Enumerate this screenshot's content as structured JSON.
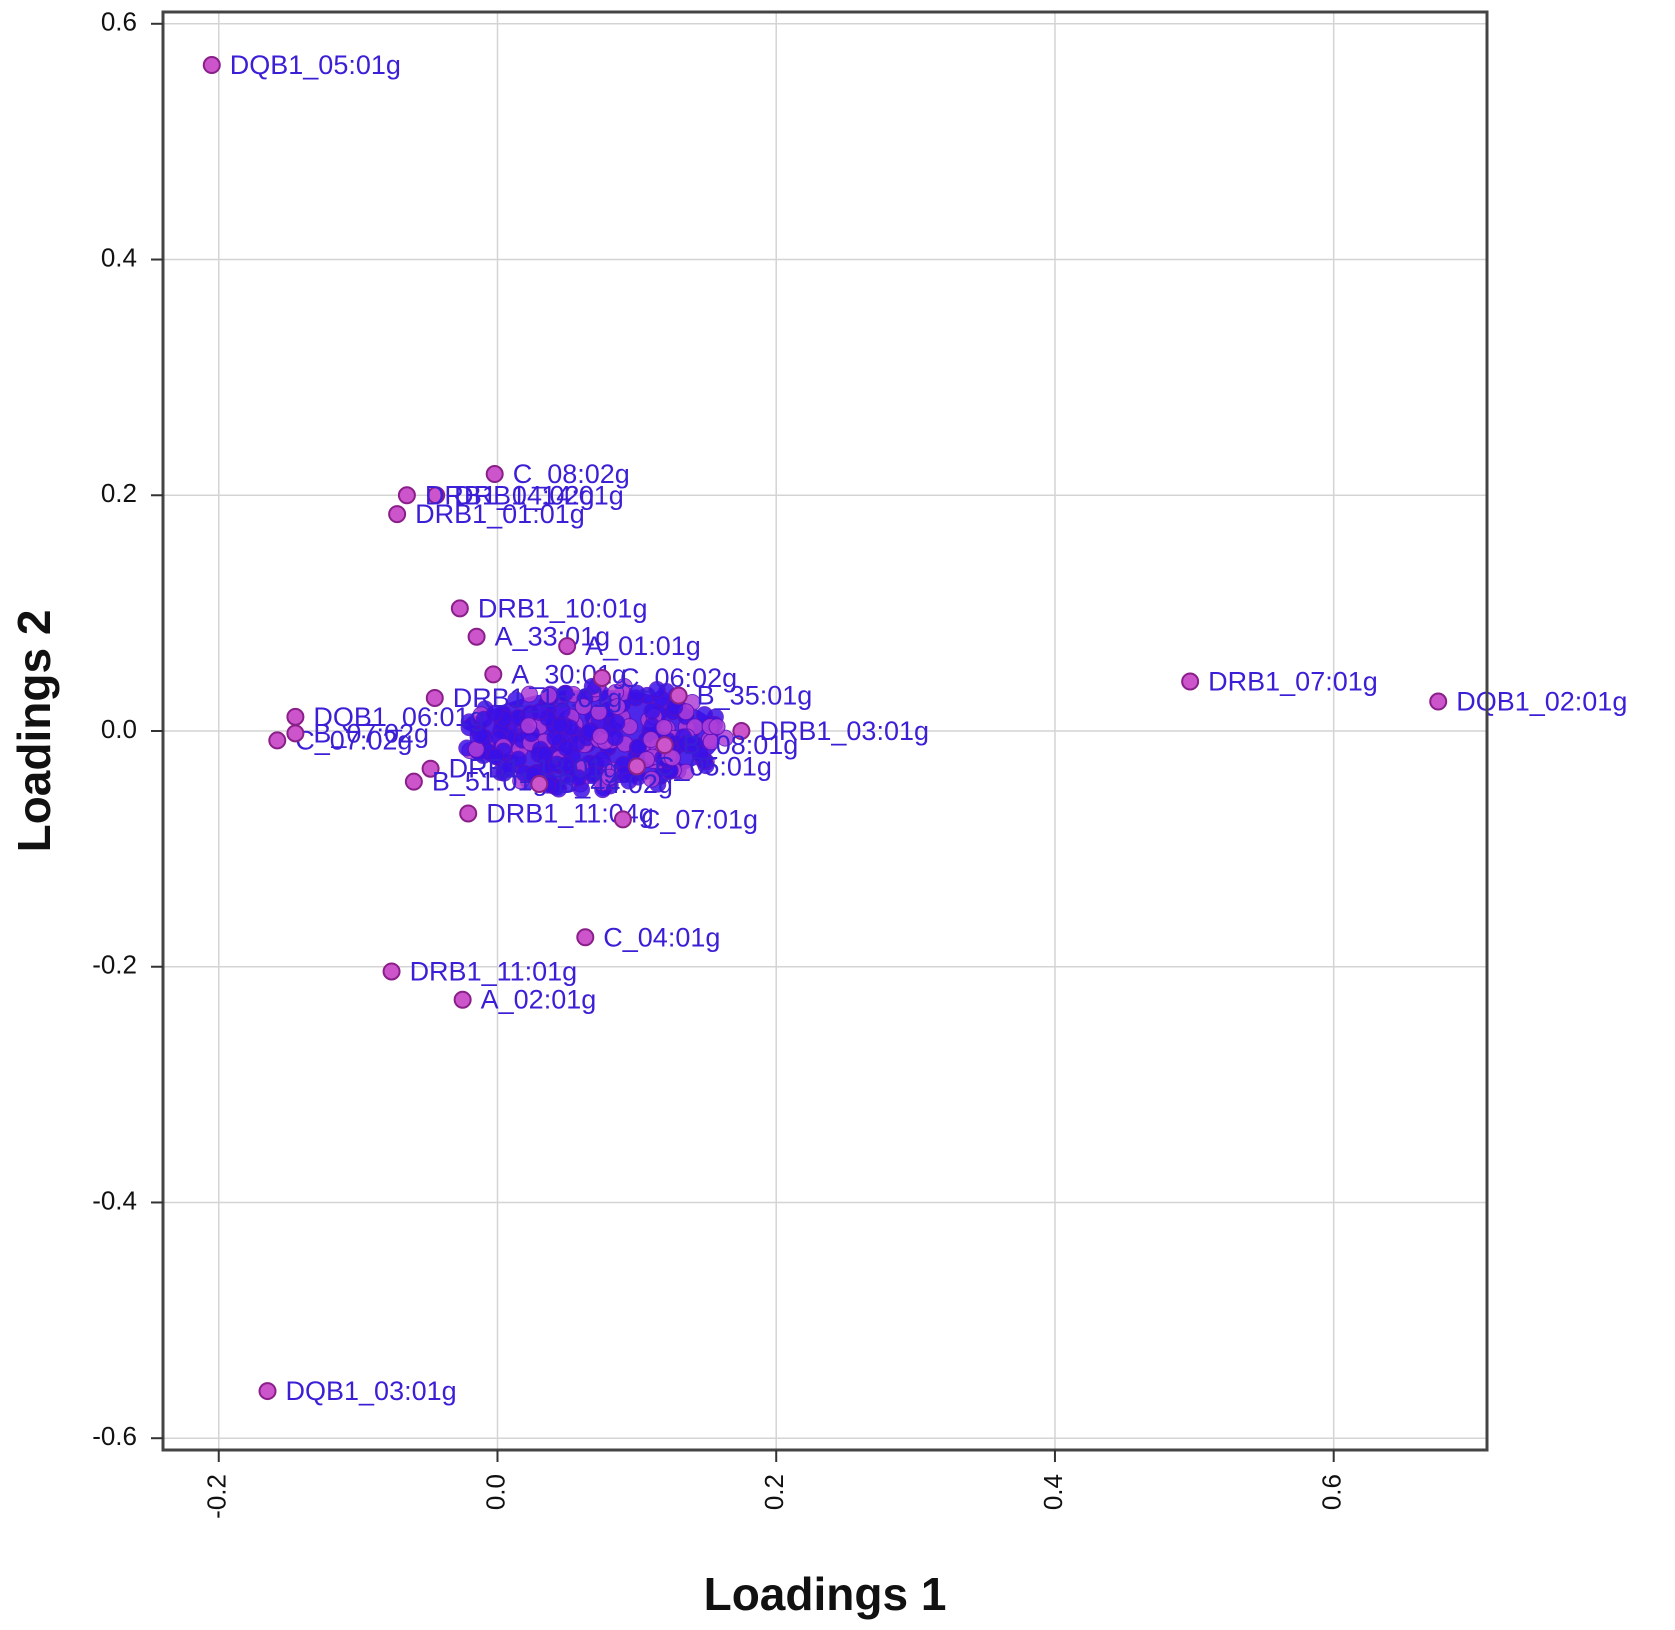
{
  "chart_data": {
    "type": "scatter",
    "title": "",
    "xlabel": "Loadings 1",
    "ylabel": "Loadings 2",
    "xlim": [
      -0.24,
      0.71
    ],
    "ylim": [
      -0.61,
      0.61
    ],
    "xticks": [
      -0.2,
      0.0,
      0.2,
      0.4,
      0.6
    ],
    "xtick_labels": [
      "-0.2",
      "0.0",
      "0.2",
      "0.4",
      "0.6"
    ],
    "yticks": [
      -0.6,
      -0.4,
      -0.2,
      0.0,
      0.2,
      0.4,
      0.6
    ],
    "ytick_labels": [
      "-0.6",
      "-0.4",
      "-0.2",
      "0.0",
      "0.2",
      "0.4",
      "0.6"
    ],
    "grid": true,
    "legend": "none",
    "colors": {
      "point_fill": "#cc55cc",
      "point_stroke": "#8a1f8a",
      "label": "#3a1fd6",
      "cluster": "#3a10e8",
      "grid": "#d4d4d4",
      "frame": "#444444"
    },
    "points": [
      {
        "label": "DQB1_05:01g",
        "x": -0.205,
        "y": 0.565
      },
      {
        "label": "DQB1_03:01g",
        "x": -0.165,
        "y": -0.56
      },
      {
        "label": "DRB1_07:01g",
        "x": 0.497,
        "y": 0.042
      },
      {
        "label": "DQB1_02:01g",
        "x": 0.675,
        "y": 0.025
      },
      {
        "label": "C_08:02g",
        "x": -0.002,
        "y": 0.218
      },
      {
        "label": "DRB1_14:01g",
        "x": -0.044,
        "y": 0.2
      },
      {
        "label": "DRB1_04:02g",
        "x": -0.065,
        "y": 0.2
      },
      {
        "label": "DRB1_01:01g",
        "x": -0.072,
        "y": 0.184
      },
      {
        "label": "DRB1_10:01g",
        "x": -0.027,
        "y": 0.104
      },
      {
        "label": "A_33:01g",
        "x": -0.015,
        "y": 0.08
      },
      {
        "label": "A_01:01g",
        "x": 0.05,
        "y": 0.072
      },
      {
        "label": "A_30:01g",
        "x": -0.003,
        "y": 0.048
      },
      {
        "label": "C_06:02g",
        "x": 0.075,
        "y": 0.045
      },
      {
        "label": "B_35:01g",
        "x": 0.13,
        "y": 0.03
      },
      {
        "label": "DQB1_06:01g",
        "x": -0.145,
        "y": 0.012
      },
      {
        "label": "DRB1_15:01g",
        "x": -0.045,
        "y": 0.028
      },
      {
        "label": "C_07:02g",
        "x": -0.158,
        "y": -0.008
      },
      {
        "label": "B_07:02g",
        "x": -0.145,
        "y": -0.002
      },
      {
        "label": "DRB1_03:01g",
        "x": 0.175,
        "y": 0.0
      },
      {
        "label": "B_08:01g",
        "x": 0.12,
        "y": -0.012
      },
      {
        "label": "DRB1_13:01g",
        "x": -0.048,
        "y": -0.032
      },
      {
        "label": "B_51:01g",
        "x": -0.06,
        "y": -0.043
      },
      {
        "label": "B_44:02g",
        "x": 0.03,
        "y": -0.045
      },
      {
        "label": "C_05:01g",
        "x": 0.1,
        "y": -0.03
      },
      {
        "label": "DRB1_11:04g",
        "x": -0.021,
        "y": -0.07
      },
      {
        "label": "C_07:01g",
        "x": 0.09,
        "y": -0.075
      },
      {
        "label": "C_04:01g",
        "x": 0.063,
        "y": -0.175
      },
      {
        "label": "DRB1_11:01g",
        "x": -0.076,
        "y": -0.204
      },
      {
        "label": "A_02:01g",
        "x": -0.025,
        "y": -0.228
      }
    ],
    "cluster_center": {
      "x": 0.07,
      "y": -0.005
    },
    "cluster_spread": {
      "x": 0.09,
      "y": 0.04
    }
  }
}
